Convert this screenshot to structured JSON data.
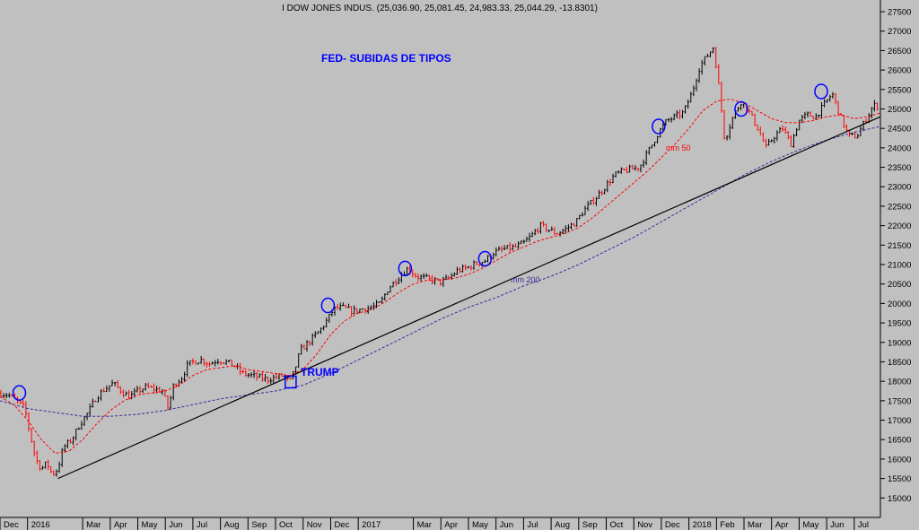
{
  "chart_data": {
    "type": "candlestick",
    "title": "I DOW JONES INDUS. (25,036.90, 25,081.45, 24,983.33, 25,044.29, -13.8301)",
    "ylim": [
      14500,
      27800
    ],
    "y_ticks": [
      15000,
      15500,
      16000,
      16500,
      17000,
      17500,
      18000,
      18500,
      19000,
      19500,
      20000,
      20500,
      21000,
      21500,
      22000,
      22500,
      23000,
      23500,
      24000,
      24500,
      25000,
      25500,
      26000,
      26500,
      27000,
      27500
    ],
    "x_ticks": [
      "Dec",
      "2016",
      "Mar",
      "Apr",
      "May",
      "Jun",
      "Jul",
      "Aug",
      "Sep",
      "Oct",
      "Nov",
      "Dec",
      "2017",
      "Mar",
      "Apr",
      "May",
      "Jun",
      "Jul",
      "Aug",
      "Sep",
      "Oct",
      "Nov",
      "Dec",
      "2018",
      "Feb",
      "Mar",
      "Apr",
      "May",
      "Jun",
      "Jul"
    ],
    "x_tick_positions_month": [
      0,
      1,
      3,
      4,
      5,
      6,
      7,
      8,
      9,
      10,
      11,
      12,
      13,
      15,
      16,
      17,
      18,
      19,
      20,
      21,
      22,
      23,
      24,
      25,
      26,
      27,
      28,
      29,
      30,
      31
    ],
    "x_range_month": [
      0,
      31.95
    ],
    "price_path": [
      [
        0.0,
        17700
      ],
      [
        0.3,
        17650
      ],
      [
        0.6,
        17500
      ],
      [
        0.9,
        17300
      ],
      [
        1.1,
        16600
      ],
      [
        1.3,
        16000
      ],
      [
        1.5,
        15750
      ],
      [
        1.7,
        15900
      ],
      [
        1.9,
        15600
      ],
      [
        2.1,
        15750
      ],
      [
        2.3,
        16300
      ],
      [
        2.6,
        16500
      ],
      [
        2.9,
        16900
      ],
      [
        3.2,
        17200
      ],
      [
        3.5,
        17600
      ],
      [
        3.8,
        17800
      ],
      [
        4.1,
        17950
      ],
      [
        4.4,
        17750
      ],
      [
        4.7,
        17600
      ],
      [
        5.0,
        17750
      ],
      [
        5.3,
        17850
      ],
      [
        5.6,
        17800
      ],
      [
        5.9,
        17750
      ],
      [
        6.1,
        17300
      ],
      [
        6.3,
        17900
      ],
      [
        6.6,
        18100
      ],
      [
        6.8,
        18400
      ],
      [
        7.0,
        18500
      ],
      [
        7.3,
        18550
      ],
      [
        7.6,
        18450
      ],
      [
        7.9,
        18550
      ],
      [
        8.2,
        18500
      ],
      [
        8.5,
        18400
      ],
      [
        8.8,
        18200
      ],
      [
        9.1,
        18150
      ],
      [
        9.4,
        18100
      ],
      [
        9.7,
        18050
      ],
      [
        10.0,
        18100
      ],
      [
        10.3,
        18150
      ],
      [
        10.5,
        17950
      ],
      [
        10.7,
        18300
      ],
      [
        10.9,
        18800
      ],
      [
        11.2,
        19000
      ],
      [
        11.6,
        19300
      ],
      [
        11.9,
        19600
      ],
      [
        12.1,
        19850
      ],
      [
        12.4,
        19900
      ],
      [
        12.8,
        19800
      ],
      [
        13.1,
        19850
      ],
      [
        13.5,
        19900
      ],
      [
        13.8,
        20000
      ],
      [
        14.1,
        20400
      ],
      [
        14.5,
        20700
      ],
      [
        14.8,
        20900
      ],
      [
        15.1,
        20700
      ],
      [
        15.4,
        20650
      ],
      [
        15.7,
        20600
      ],
      [
        16.0,
        20550
      ],
      [
        16.3,
        20650
      ],
      [
        16.6,
        20850
      ],
      [
        16.9,
        20900
      ],
      [
        17.2,
        21000
      ],
      [
        17.6,
        21100
      ],
      [
        17.9,
        21300
      ],
      [
        18.3,
        21400
      ],
      [
        18.7,
        21450
      ],
      [
        19.0,
        21550
      ],
      [
        19.3,
        21750
      ],
      [
        19.6,
        22000
      ],
      [
        19.9,
        21900
      ],
      [
        20.2,
        21800
      ],
      [
        20.5,
        21900
      ],
      [
        20.9,
        22100
      ],
      [
        21.2,
        22400
      ],
      [
        21.6,
        22700
      ],
      [
        21.9,
        22950
      ],
      [
        22.3,
        23300
      ],
      [
        22.6,
        23400
      ],
      [
        22.9,
        23450
      ],
      [
        23.2,
        23500
      ],
      [
        23.6,
        24000
      ],
      [
        23.9,
        24400
      ],
      [
        24.2,
        24700
      ],
      [
        24.5,
        24800
      ],
      [
        24.8,
        24900
      ],
      [
        25.1,
        25400
      ],
      [
        25.4,
        26100
      ],
      [
        25.7,
        26400
      ],
      [
        25.9,
        26600
      ],
      [
        26.1,
        25500
      ],
      [
        26.3,
        24200
      ],
      [
        26.6,
        24800
      ],
      [
        26.9,
        25200
      ],
      [
        27.2,
        24900
      ],
      [
        27.5,
        24500
      ],
      [
        27.8,
        24000
      ],
      [
        28.1,
        24300
      ],
      [
        28.4,
        24500
      ],
      [
        28.7,
        24100
      ],
      [
        29.0,
        24700
      ],
      [
        29.3,
        24850
      ],
      [
        29.6,
        24800
      ],
      [
        29.9,
        25100
      ],
      [
        30.2,
        25400
      ],
      [
        30.5,
        24800
      ],
      [
        30.8,
        24300
      ],
      [
        31.1,
        24300
      ],
      [
        31.4,
        24700
      ],
      [
        31.7,
        25100
      ],
      [
        31.95,
        25044
      ]
    ],
    "ma50": [
      [
        0.0,
        17600
      ],
      [
        0.5,
        17400
      ],
      [
        1.0,
        17000
      ],
      [
        1.5,
        16500
      ],
      [
        2.0,
        16150
      ],
      [
        2.5,
        16200
      ],
      [
        3.0,
        16500
      ],
      [
        3.5,
        16900
      ],
      [
        4.0,
        17250
      ],
      [
        4.5,
        17500
      ],
      [
        5.0,
        17650
      ],
      [
        5.5,
        17700
      ],
      [
        6.0,
        17750
      ],
      [
        6.5,
        17900
      ],
      [
        7.0,
        18150
      ],
      [
        7.5,
        18300
      ],
      [
        8.0,
        18350
      ],
      [
        8.5,
        18400
      ],
      [
        9.0,
        18300
      ],
      [
        9.5,
        18250
      ],
      [
        10.0,
        18200
      ],
      [
        10.5,
        18150
      ],
      [
        11.0,
        18300
      ],
      [
        11.5,
        18700
      ],
      [
        12.0,
        19200
      ],
      [
        12.5,
        19550
      ],
      [
        13.0,
        19750
      ],
      [
        13.5,
        19850
      ],
      [
        14.0,
        20050
      ],
      [
        14.5,
        20300
      ],
      [
        15.0,
        20500
      ],
      [
        15.5,
        20600
      ],
      [
        16.0,
        20600
      ],
      [
        16.5,
        20650
      ],
      [
        17.0,
        20750
      ],
      [
        17.5,
        20900
      ],
      [
        18.0,
        21100
      ],
      [
        18.5,
        21300
      ],
      [
        19.0,
        21450
      ],
      [
        19.5,
        21600
      ],
      [
        20.0,
        21700
      ],
      [
        20.5,
        21800
      ],
      [
        21.0,
        21950
      ],
      [
        21.5,
        22200
      ],
      [
        22.0,
        22500
      ],
      [
        22.5,
        22800
      ],
      [
        23.0,
        23100
      ],
      [
        23.5,
        23400
      ],
      [
        24.0,
        23750
      ],
      [
        24.5,
        24100
      ],
      [
        25.0,
        24500
      ],
      [
        25.5,
        24950
      ],
      [
        26.0,
        25200
      ],
      [
        26.5,
        25250
      ],
      [
        27.0,
        25150
      ],
      [
        27.5,
        24950
      ],
      [
        28.0,
        24750
      ],
      [
        28.5,
        24650
      ],
      [
        29.0,
        24650
      ],
      [
        29.5,
        24700
      ],
      [
        30.0,
        24800
      ],
      [
        30.5,
        24850
      ],
      [
        31.0,
        24750
      ],
      [
        31.5,
        24800
      ],
      [
        31.95,
        24900
      ]
    ],
    "ma200": [
      [
        0.0,
        17500
      ],
      [
        1.0,
        17300
      ],
      [
        2.0,
        17200
      ],
      [
        3.0,
        17100
      ],
      [
        4.0,
        17100
      ],
      [
        5.0,
        17150
      ],
      [
        6.0,
        17250
      ],
      [
        7.0,
        17400
      ],
      [
        8.0,
        17550
      ],
      [
        9.0,
        17650
      ],
      [
        10.0,
        17750
      ],
      [
        11.0,
        17900
      ],
      [
        12.0,
        18200
      ],
      [
        13.0,
        18550
      ],
      [
        14.0,
        18900
      ],
      [
        15.0,
        19250
      ],
      [
        16.0,
        19600
      ],
      [
        17.0,
        19900
      ],
      [
        18.0,
        20150
      ],
      [
        19.0,
        20450
      ],
      [
        20.0,
        20700
      ],
      [
        21.0,
        21000
      ],
      [
        22.0,
        21350
      ],
      [
        23.0,
        21700
      ],
      [
        24.0,
        22100
      ],
      [
        25.0,
        22500
      ],
      [
        26.0,
        22900
      ],
      [
        27.0,
        23300
      ],
      [
        28.0,
        23650
      ],
      [
        29.0,
        23950
      ],
      [
        30.0,
        24200
      ],
      [
        31.0,
        24400
      ],
      [
        31.95,
        24550
      ]
    ],
    "trendline": [
      [
        2.1,
        15500
      ],
      [
        31.95,
        24800
      ]
    ],
    "circles_month": [
      [
        0.7,
        17700
      ],
      [
        11.9,
        19950
      ],
      [
        14.7,
        20900
      ],
      [
        17.6,
        21150
      ],
      [
        23.9,
        24550
      ],
      [
        26.9,
        25000
      ],
      [
        29.8,
        25450
      ]
    ],
    "square_month": [
      10.55,
      17970
    ],
    "colors": {
      "background": "#c0c0c0",
      "up": "#000000",
      "down": "#ff0000",
      "ma50": "#ff0000",
      "ma200": "#3a2a9a",
      "trend": "#000000",
      "highlight": "#0000ff"
    }
  },
  "annotations": {
    "fed": "FED- SUBIDAS DE TIPOS",
    "trump": "TRUMP",
    "mm50": "mm 50",
    "mm200": "mm 200"
  }
}
